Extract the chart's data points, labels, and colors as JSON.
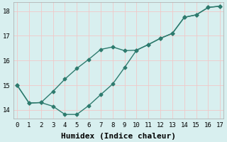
{
  "xlabel": "Humidex (Indice chaleur)",
  "bg_color": "#d8efef",
  "grid_color": "#f0c8c8",
  "line_color": "#2e7b6e",
  "xlim_min": -0.3,
  "xlim_max": 17.3,
  "ylim_min": 13.65,
  "ylim_max": 18.35,
  "xticks": [
    0,
    1,
    2,
    3,
    4,
    5,
    6,
    7,
    8,
    9,
    10,
    11,
    12,
    13,
    14,
    15,
    16,
    17
  ],
  "yticks": [
    14,
    15,
    16,
    17,
    18
  ],
  "series1_x": [
    0,
    1,
    2,
    3,
    4,
    5,
    6,
    7,
    8,
    9,
    10,
    11,
    12,
    13,
    14,
    15,
    16,
    17
  ],
  "series1_y": [
    15.0,
    14.28,
    14.3,
    14.75,
    15.25,
    15.68,
    16.05,
    16.45,
    16.55,
    16.4,
    16.42,
    16.65,
    16.9,
    17.1,
    17.75,
    17.85,
    18.15,
    18.2
  ],
  "series2_x": [
    0,
    1,
    2,
    3,
    4,
    5,
    6,
    7,
    8,
    9,
    10,
    11,
    12,
    13,
    14,
    15,
    16,
    17
  ],
  "series2_y": [
    15.0,
    14.28,
    14.3,
    14.15,
    13.82,
    13.82,
    14.18,
    14.62,
    15.05,
    15.72,
    16.42,
    16.65,
    16.9,
    17.1,
    17.75,
    17.85,
    18.15,
    18.2
  ],
  "font_family": "monospace",
  "tick_fontsize": 6.5,
  "xlabel_fontsize": 8,
  "marker": "D",
  "markersize": 2.5,
  "linewidth": 1.0
}
